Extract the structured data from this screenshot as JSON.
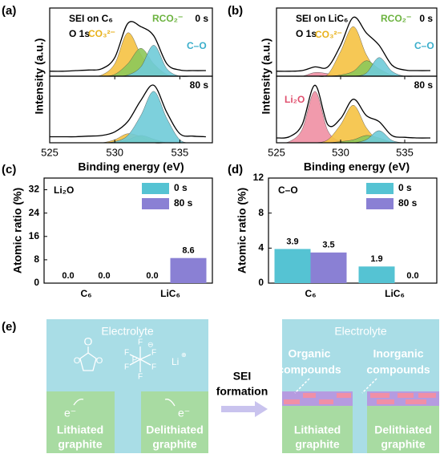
{
  "chart_data": [
    {
      "type": "area",
      "panel_label": "(a)",
      "title": "SEI on C₆",
      "subtitle": "O 1s",
      "ylabel": "Intensity (a.u.)",
      "annotations": [
        {
          "text": "0 s",
          "color": "#000000"
        },
        {
          "text": "CO₃²⁻",
          "color": "#e8b21c"
        },
        {
          "text": "RCO₂⁻",
          "color": "#6cb33f"
        },
        {
          "text": "C–O",
          "color": "#3aaecb"
        }
      ],
      "x": [
        525,
        526,
        527,
        528,
        529,
        530,
        531,
        532,
        533,
        534,
        535,
        536,
        537
      ],
      "xlim": [
        525,
        537.5
      ],
      "ylim": [
        0,
        1.1
      ],
      "series": [
        {
          "color": "#f5c242",
          "values": [
            0,
            0,
            0,
            0,
            0.02,
            0.2,
            0.7,
            0.35,
            0.05,
            0,
            0,
            0,
            0
          ]
        },
        {
          "color": "#8dc85a",
          "values": [
            0,
            0,
            0,
            0,
            0,
            0.03,
            0.2,
            0.45,
            0.2,
            0.03,
            0,
            0,
            0
          ]
        },
        {
          "color": "#6fcbd8",
          "values": [
            0,
            0,
            0,
            0,
            0,
            0,
            0.02,
            0.15,
            0.5,
            0.12,
            0,
            0,
            0
          ]
        },
        {
          "color": "#000000",
          "line": true,
          "values": [
            0.08,
            0.08,
            0.09,
            0.1,
            0.12,
            0.3,
            0.85,
            0.8,
            0.65,
            0.2,
            0.1,
            0.09,
            0.09
          ]
        }
      ]
    },
    {
      "type": "area",
      "xlabel": "Binding energy (eV)",
      "annotations": [
        {
          "text": "80 s",
          "color": "#000000"
        }
      ],
      "x": [
        525,
        526,
        527,
        528,
        529,
        530,
        531,
        532,
        533,
        534,
        535,
        536,
        537
      ],
      "xlim": [
        525,
        537.5
      ],
      "ylim": [
        0,
        1.1
      ],
      "xticks": [
        525,
        530,
        535
      ],
      "series": [
        {
          "color": "#f5c242",
          "values": [
            0,
            0,
            0,
            0,
            0,
            0.05,
            0.15,
            0.1,
            0,
            0,
            0,
            0,
            0
          ]
        },
        {
          "color": "#8dc85a",
          "values": [
            0,
            0,
            0,
            0,
            0,
            0,
            0.05,
            0.12,
            0.06,
            0,
            0,
            0,
            0
          ]
        },
        {
          "color": "#6fcbd8",
          "values": [
            0,
            0,
            0,
            0,
            0,
            0.02,
            0.12,
            0.45,
            0.85,
            0.4,
            0.05,
            0,
            0
          ]
        },
        {
          "color": "#000000",
          "line": true,
          "values": [
            0.1,
            0.1,
            0.1,
            0.11,
            0.12,
            0.18,
            0.35,
            0.7,
            0.95,
            0.5,
            0.15,
            0.11,
            0.1
          ]
        }
      ]
    },
    {
      "type": "area",
      "panel_label": "(b)",
      "title": "SEI on LiC₆",
      "subtitle": "O 1s",
      "ylabel": "Intensity (a.u.)",
      "annotations": [
        {
          "text": "0 s",
          "color": "#000000"
        },
        {
          "text": "CO₃²⁻",
          "color": "#e8b21c"
        },
        {
          "text": "RCO₂⁻",
          "color": "#6cb33f"
        },
        {
          "text": "C–O",
          "color": "#3aaecb"
        }
      ],
      "x": [
        525,
        526,
        527,
        528,
        529,
        530,
        531,
        532,
        533,
        534,
        535,
        536,
        537
      ],
      "xlim": [
        525,
        537.5
      ],
      "ylim": [
        0,
        1.1
      ],
      "series": [
        {
          "color": "#ef8fa3",
          "values": [
            0,
            0,
            0,
            0.06,
            0.04,
            0,
            0,
            0,
            0,
            0,
            0,
            0,
            0
          ]
        },
        {
          "color": "#f5c242",
          "values": [
            0,
            0,
            0,
            0,
            0.03,
            0.4,
            0.8,
            0.35,
            0.05,
            0,
            0,
            0,
            0
          ]
        },
        {
          "color": "#8dc85a",
          "values": [
            0,
            0,
            0,
            0,
            0,
            0.02,
            0.08,
            0.25,
            0.12,
            0.02,
            0,
            0,
            0
          ]
        },
        {
          "color": "#6fcbd8",
          "values": [
            0,
            0,
            0,
            0,
            0,
            0,
            0,
            0.05,
            0.3,
            0.08,
            0,
            0,
            0
          ]
        },
        {
          "color": "#000000",
          "line": true,
          "values": [
            0.08,
            0.08,
            0.09,
            0.15,
            0.15,
            0.5,
            0.95,
            0.7,
            0.5,
            0.18,
            0.1,
            0.09,
            0.09
          ]
        }
      ]
    },
    {
      "type": "area",
      "xlabel": "Binding energy (eV)",
      "annotations": [
        {
          "text": "80 s",
          "color": "#000000"
        },
        {
          "text": "Li₂O",
          "color": "#e0506e"
        }
      ],
      "x": [
        525,
        526,
        527,
        528,
        529,
        530,
        531,
        532,
        533,
        534,
        535,
        536,
        537
      ],
      "xlim": [
        525,
        537.5
      ],
      "ylim": [
        0,
        1.1
      ],
      "xticks": [
        525,
        530,
        535
      ],
      "series": [
        {
          "color": "#ef8fa3",
          "values": [
            0,
            0.02,
            0.22,
            0.85,
            0.2,
            0.02,
            0,
            0,
            0,
            0,
            0,
            0,
            0
          ]
        },
        {
          "color": "#f5c242",
          "values": [
            0,
            0,
            0,
            0,
            0.05,
            0.3,
            0.62,
            0.25,
            0.03,
            0,
            0,
            0,
            0
          ]
        },
        {
          "color": "#8dc85a",
          "values": [
            0,
            0,
            0,
            0,
            0,
            0.02,
            0.05,
            0.12,
            0.08,
            0.01,
            0,
            0,
            0
          ]
        },
        {
          "color": "#6fcbd8",
          "values": [
            0,
            0,
            0,
            0,
            0,
            0,
            0,
            0.05,
            0.2,
            0.04,
            0,
            0,
            0
          ]
        },
        {
          "color": "#000000",
          "line": true,
          "values": [
            0.08,
            0.1,
            0.3,
            0.95,
            0.3,
            0.4,
            0.72,
            0.45,
            0.35,
            0.12,
            0.09,
            0.08,
            0.08
          ]
        }
      ]
    },
    {
      "type": "bar",
      "panel_label": "(c)",
      "title": "Li₂O",
      "ylabel": "Atomic ratio (%)",
      "categories": [
        "C₆",
        "LiC₆"
      ],
      "ylim": [
        0,
        36
      ],
      "yticks": [
        0,
        8,
        16,
        24,
        32
      ],
      "series": [
        {
          "name": "0 s",
          "color": "#55c3d3",
          "values": [
            0,
            0
          ],
          "value_labels": [
            "0.0",
            "0.0"
          ]
        },
        {
          "name": "80 s",
          "color": "#8a80d4",
          "values": [
            0,
            8.6
          ],
          "value_labels": [
            "0.0",
            "8.6"
          ]
        }
      ]
    },
    {
      "type": "bar",
      "panel_label": "(d)",
      "title": "C–O",
      "ylabel": "Atomic ratio (%)",
      "categories": [
        "C₆",
        "LiC₆"
      ],
      "ylim": [
        0,
        12
      ],
      "yticks": [
        0,
        4,
        8,
        12
      ],
      "series": [
        {
          "name": "0 s",
          "color": "#55c3d3",
          "values": [
            3.9,
            1.9
          ],
          "value_labels": [
            "3.9",
            "1.9"
          ]
        },
        {
          "name": "80 s",
          "color": "#8a80d4",
          "values": [
            3.5,
            0
          ],
          "value_labels": [
            "3.5",
            "0.0"
          ]
        }
      ]
    }
  ],
  "diagram": {
    "panel_label": "(e)",
    "left": {
      "electrolyte": "Electrolyte",
      "ec_atoms": [
        "O",
        "O",
        "O"
      ],
      "pf6_atoms": [
        "F",
        "F",
        "F",
        "P",
        "F",
        "F",
        "F"
      ],
      "pf6_charge": "⊖",
      "li": "Li",
      "li_charge": "⊕",
      "electron_left": "e⁻",
      "electron_right": "e⁻",
      "lithiated": [
        "Lithiated",
        "graphite"
      ],
      "delithiated": [
        "Delithiated",
        "graphite"
      ]
    },
    "arrow": [
      "SEI",
      "formation"
    ],
    "right": {
      "electrolyte": "Electrolyte",
      "organic": [
        "Organic",
        "compounds"
      ],
      "inorganic": [
        "Inorganic",
        "compounds"
      ],
      "lithiated": [
        "Lithiated",
        "graphite"
      ],
      "delithiated": [
        "Delithiated",
        "graphite"
      ]
    }
  }
}
